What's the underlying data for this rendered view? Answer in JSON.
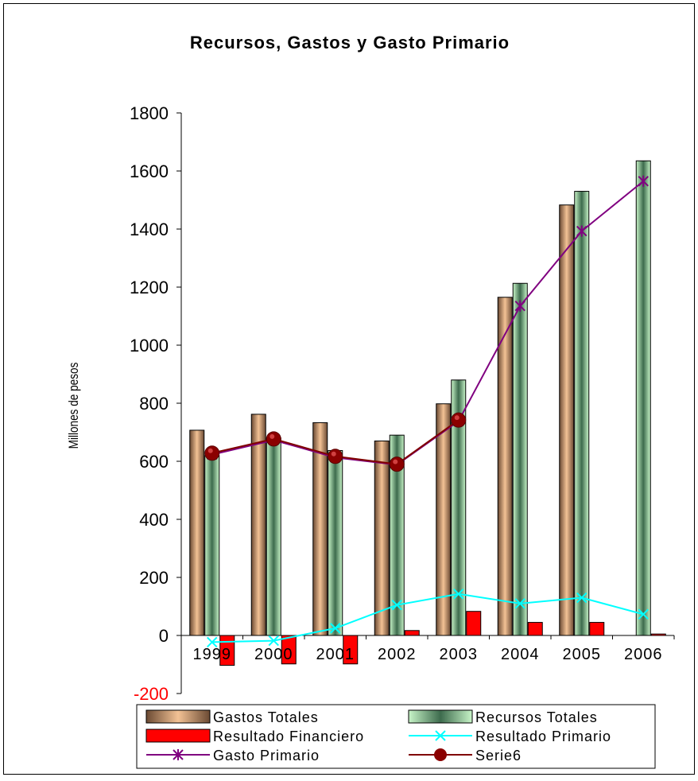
{
  "chart_data": {
    "type": "bar",
    "title": "Recursos, Gastos y Gasto Primario",
    "ylabel": "Millones de pesos",
    "xlabel": "",
    "ylim": [
      -200,
      1800
    ],
    "yticks": [
      1800,
      1600,
      1400,
      1200,
      1000,
      800,
      600,
      400,
      200,
      0,
      -200
    ],
    "categories": [
      "1999",
      "2000",
      "2001",
      "2002",
      "2003",
      "2004",
      "2005",
      "2006"
    ],
    "bar_series": [
      {
        "name": "Gastos Totales",
        "values": [
          707,
          762,
          733,
          670,
          798,
          1165,
          1483,
          null
        ]
      },
      {
        "name": "Recursos Totales",
        "values": [
          620,
          680,
          637,
          690,
          880,
          1213,
          1530,
          1635
        ]
      },
      {
        "name": "Resultado Financiero",
        "values": [
          -103,
          -98,
          -98,
          17,
          83,
          45,
          45,
          5
        ]
      }
    ],
    "line_series": [
      {
        "name": "Resultado Primario",
        "values": [
          -23,
          -18,
          25,
          105,
          143,
          110,
          130,
          73
        ]
      },
      {
        "name": "Gasto Primario",
        "values": [
          623,
          673,
          613,
          588,
          738,
          1135,
          1393,
          1565
        ]
      },
      {
        "name": "Serie6",
        "values": [
          628,
          677,
          617,
          590,
          742,
          null,
          null,
          null
        ]
      }
    ],
    "colors": {
      "gastos": "#b07a4a",
      "recursos": "#b6e9b6",
      "financiero": "#ff0000",
      "primario": "#00ffff",
      "gasto_primario": "#800080",
      "serie6": "#800000"
    },
    "legend_position": "bottom",
    "grid": false
  }
}
